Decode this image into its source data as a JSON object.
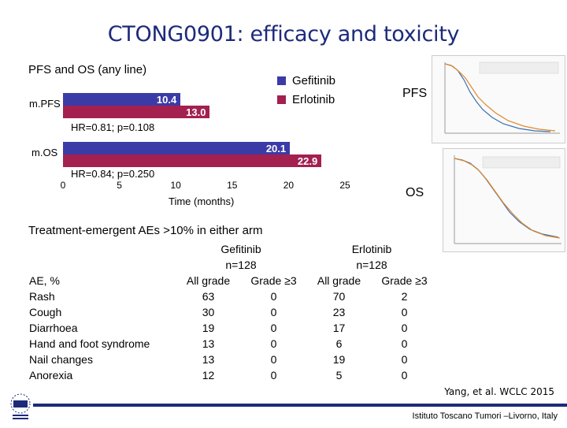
{
  "slide": {
    "title": "CTONG0901: efficacy and toxicity",
    "citation": "Yang, et al. WCLC 2015",
    "institute": "Istituto Toscano Tumori –Livorno, Italy"
  },
  "chart_data": {
    "type": "bar",
    "orientation": "horizontal",
    "title": "PFS and OS (any line)",
    "xlabel": "Time (months)",
    "xlim": [
      0,
      25
    ],
    "xticks": [
      "0",
      "5",
      "10",
      "15",
      "20",
      "25"
    ],
    "categories": [
      "m.PFS",
      "m.OS"
    ],
    "series": [
      {
        "name": "Gefitinib",
        "values": [
          10.4,
          20.1
        ],
        "labels": [
          "10.4",
          "20.1"
        ],
        "color": "#3b3ba8"
      },
      {
        "name": "Erlotinib",
        "values": [
          13.0,
          22.9
        ],
        "labels": [
          "13.0",
          "22.9"
        ],
        "color": "#a3204f"
      }
    ],
    "annotations": [
      "HR=0.81; p=0.108",
      "HR=0.84; p=0.250"
    ],
    "legend": "top-right"
  },
  "side_panels": {
    "pfs_label": "PFS",
    "os_label": "OS"
  },
  "ae_table": {
    "header": "Treatment-emergent AEs >10% in either arm",
    "arm1": {
      "name": "Gefitinib",
      "n": "n=128"
    },
    "arm2": {
      "name": "Erlotinib",
      "n": "n=128"
    },
    "col_all": "All grade",
    "col_g3": "Grade ≥3",
    "row_header": "AE, %",
    "rows": [
      {
        "ae": "Rash",
        "g_all": "63",
        "g_g3": "0",
        "e_all": "70",
        "e_g3": "2"
      },
      {
        "ae": "Cough",
        "g_all": "30",
        "g_g3": "0",
        "e_all": "23",
        "e_g3": "0"
      },
      {
        "ae": "Diarrhoea",
        "g_all": "19",
        "g_g3": "0",
        "e_all": "17",
        "e_g3": "0"
      },
      {
        "ae": "Hand and foot syndrome",
        "g_all": "13",
        "g_g3": "0",
        "e_all": "6",
        "e_g3": "0"
      },
      {
        "ae": "Nail changes",
        "g_all": "13",
        "g_g3": "0",
        "e_all": "19",
        "e_g3": "0"
      },
      {
        "ae": "Anorexia",
        "g_all": "12",
        "g_g3": "0",
        "e_all": "5",
        "e_g3": "0"
      }
    ]
  }
}
